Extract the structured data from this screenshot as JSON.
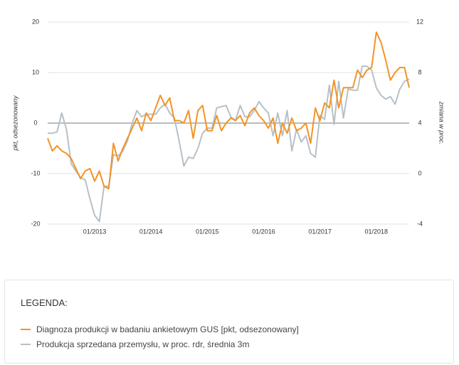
{
  "chart_data": {
    "type": "line",
    "y_label": "pkt, odsezonowany",
    "y2_label": "zmiana w proc.",
    "x": [
      "03/2012",
      "04/2012",
      "05/2012",
      "06/2012",
      "07/2012",
      "08/2012",
      "09/2012",
      "10/2012",
      "11/2012",
      "12/2012",
      "01/2013",
      "02/2013",
      "03/2013",
      "04/2013",
      "05/2013",
      "06/2013",
      "07/2013",
      "08/2013",
      "09/2013",
      "10/2013",
      "11/2013",
      "12/2013",
      "01/2014",
      "02/2014",
      "03/2014",
      "04/2014",
      "05/2014",
      "06/2014",
      "07/2014",
      "08/2014",
      "09/2014",
      "10/2014",
      "11/2014",
      "12/2014",
      "01/2015",
      "02/2015",
      "03/2015",
      "04/2015",
      "05/2015",
      "06/2015",
      "07/2015",
      "08/2015",
      "09/2015",
      "10/2015",
      "11/2015",
      "12/2015",
      "01/2016",
      "02/2016",
      "03/2016",
      "04/2016",
      "05/2016",
      "06/2016",
      "07/2016",
      "08/2016",
      "09/2016",
      "10/2016",
      "11/2016",
      "12/2016",
      "01/2017",
      "02/2017",
      "03/2017",
      "04/2017",
      "05/2017",
      "06/2017",
      "07/2017",
      "08/2017",
      "09/2017",
      "10/2017",
      "11/2017",
      "12/2017",
      "01/2018",
      "02/2018",
      "03/2018",
      "04/2018",
      "05/2018",
      "06/2018",
      "07/2018",
      "08/2018"
    ],
    "xticks": [
      "01/2013",
      "01/2014",
      "01/2015",
      "01/2016",
      "01/2017",
      "01/2018"
    ],
    "ylim": [
      -20,
      20
    ],
    "yticks": [
      -20,
      -10,
      0,
      10,
      20
    ],
    "y2lim": [
      -4,
      12
    ],
    "y2ticks": [
      -4,
      0,
      4,
      8,
      12
    ],
    "grid": true,
    "legend_title": "LEGENDA:",
    "series": [
      {
        "name": "Diagnoza produkcji w badaniu ankietowym GUS [pkt, odsezonowany]",
        "color": "#f39325",
        "values": [
          -3,
          -5.5,
          -4.5,
          -5.5,
          -6,
          -7,
          -9,
          -11,
          -9.5,
          -9,
          -11.5,
          -9.5,
          -12.5,
          -13,
          -4,
          -7.5,
          -5,
          -3,
          -1,
          1,
          -1.5,
          2,
          0.5,
          3,
          5.5,
          3.5,
          5,
          0.5,
          0.5,
          0,
          2.5,
          -3,
          2.5,
          3.5,
          -1.5,
          -1.5,
          1.5,
          -1.5,
          0,
          1,
          0.5,
          1.5,
          -0.5,
          2,
          3,
          1.5,
          0.5,
          -1,
          1,
          -4,
          0,
          -2,
          1,
          -1.5,
          -1,
          0,
          -4,
          3,
          0.5,
          4,
          3,
          8.5,
          3,
          7,
          7,
          7,
          10.5,
          9,
          10.5,
          11,
          18,
          16,
          12.5,
          8.5,
          10,
          11,
          11,
          7
        ]
      },
      {
        "name": "Produkcja sprzedana przemysłu, w proc. rdr, średnia 3m",
        "color": "#b7c0c7",
        "axis": "y2",
        "values": [
          3.2,
          3.2,
          3.3,
          4.8,
          3.5,
          0.8,
          0.2,
          -0.3,
          -0.5,
          -2,
          -3.3,
          -3.8,
          -1,
          -1,
          1.5,
          1.4,
          1.8,
          2.6,
          4,
          5,
          4.5,
          4.7,
          4.7,
          4.7,
          5.2,
          5.5,
          4.8,
          4.4,
          2.6,
          0.6,
          1.3,
          1.2,
          2,
          3.2,
          3.6,
          3.6,
          5.2,
          5.3,
          5.4,
          4.5,
          4.2,
          5.4,
          4.5,
          4.5,
          5,
          5.7,
          5.2,
          4.8,
          3,
          4.8,
          3,
          5,
          1.8,
          3.5,
          2.5,
          3,
          1.6,
          1.3,
          4.6,
          4.3,
          7,
          3.9,
          7.3,
          4.4,
          6.7,
          6.6,
          6.6,
          8.5,
          8.5,
          8.2,
          6.8,
          6.2,
          5.9,
          6.1,
          5.5,
          6.7,
          7.3,
          7.5
        ]
      }
    ]
  }
}
